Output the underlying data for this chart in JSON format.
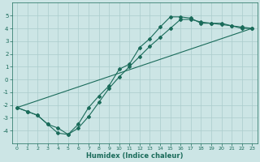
{
  "bg_color": "#cce5e5",
  "grid_color": "#aacccc",
  "line_color": "#1a6b5a",
  "xlabel": "Humidex (Indice chaleur)",
  "xlim": [
    -0.5,
    23.5
  ],
  "ylim": [
    -5,
    6
  ],
  "yticks": [
    -4,
    -3,
    -2,
    -1,
    0,
    1,
    2,
    3,
    4,
    5
  ],
  "xticks": [
    0,
    1,
    2,
    3,
    4,
    5,
    6,
    7,
    8,
    9,
    10,
    11,
    12,
    13,
    14,
    15,
    16,
    17,
    18,
    19,
    20,
    21,
    22,
    23
  ],
  "line1_x": [
    0,
    1,
    2,
    3,
    4,
    5,
    6,
    7,
    8,
    9,
    10,
    11,
    12,
    13,
    14,
    15,
    16,
    17,
    18,
    19,
    20,
    21,
    22,
    23
  ],
  "line1_y": [
    -2.2,
    -2.5,
    -2.8,
    -3.5,
    -4.2,
    -4.3,
    -3.8,
    -2.9,
    -1.8,
    -0.7,
    0.2,
    1.0,
    1.8,
    2.6,
    3.3,
    4.0,
    4.7,
    4.7,
    4.5,
    4.4,
    4.3,
    4.2,
    4.1,
    4.0
  ],
  "line2_x": [
    0,
    1,
    2,
    3,
    4,
    5,
    6,
    7,
    8,
    9,
    10,
    11,
    12,
    13,
    14,
    15,
    16,
    17,
    18,
    19,
    20,
    21,
    22,
    23
  ],
  "line2_y": [
    -2.2,
    -2.5,
    -2.8,
    -3.5,
    -3.8,
    -4.3,
    -3.5,
    -2.2,
    -1.3,
    -0.5,
    0.8,
    1.2,
    2.5,
    3.2,
    4.1,
    4.9,
    4.9,
    4.8,
    4.4,
    4.4,
    4.4,
    4.2,
    4.0,
    4.0
  ],
  "line3_x": [
    0,
    23
  ],
  "line3_y": [
    -2.2,
    4.0
  ],
  "title_fontsize": 6,
  "xlabel_fontsize": 6,
  "tick_fontsize": 4.5,
  "lw": 0.8,
  "ms": 2.0
}
